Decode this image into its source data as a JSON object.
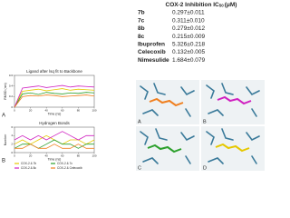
{
  "table": {
    "header": {
      "text": "COX-2 Inhibition IC",
      "sub": "50",
      "unit": "(μM)"
    },
    "rows": [
      [
        "7b",
        "0.297±0.011"
      ],
      [
        "7c",
        "0.311±0.010"
      ],
      [
        "8b",
        "0.279±0.012"
      ],
      [
        "8c",
        "0.215±0.009"
      ],
      [
        "Ibuprofen",
        "5.326±0.218"
      ],
      [
        "Celecoxib",
        "0.132±0.005"
      ],
      [
        "Nimesulide",
        "1.684±0.079"
      ]
    ]
  },
  "chart_data": [
    {
      "type": "line",
      "title": "Ligand after lsq fit to Backbone",
      "panel_label": "A",
      "x_label": "Time (ns)",
      "y_label": "RMSD (nm)",
      "x": [
        0,
        10,
        20,
        30,
        40,
        50,
        60,
        70,
        80,
        90,
        100
      ],
      "xlim": [
        0,
        100
      ],
      "xticks": [
        0,
        20,
        40,
        60,
        80,
        100
      ],
      "ylim": [
        0,
        0.6
      ],
      "yticks": [
        0,
        0.2,
        0.4,
        0.6
      ],
      "legend": false,
      "series": [
        {
          "name": "COX-2 & 7b",
          "color": "#e6c800",
          "values": [
            0,
            0.3,
            0.32,
            0.34,
            0.31,
            0.33,
            0.35,
            0.32,
            0.34,
            0.33,
            0.32
          ]
        },
        {
          "name": "COX-2 & 7c",
          "color": "#2ca02c",
          "values": [
            0,
            0.25,
            0.27,
            0.24,
            0.28,
            0.26,
            0.25,
            0.27,
            0.26,
            0.28,
            0.27
          ]
        },
        {
          "name": "COX-2 & 8c",
          "color": "#d020c0",
          "values": [
            0,
            0.36,
            0.38,
            0.4,
            0.37,
            0.39,
            0.41,
            0.38,
            0.4,
            0.39,
            0.38
          ]
        },
        {
          "name": "COX-2 & Celecoxib",
          "color": "#f08020",
          "values": [
            0,
            0.2,
            0.22,
            0.21,
            0.23,
            0.22,
            0.2,
            0.21,
            0.22,
            0.23,
            0.21
          ]
        }
      ]
    },
    {
      "type": "line",
      "title": "Hydrogen Bonds",
      "panel_label": "B",
      "x_label": "Time (ns)",
      "y_label": "Number",
      "x": [
        0,
        10,
        20,
        30,
        40,
        50,
        60,
        70,
        80,
        90,
        100
      ],
      "xlim": [
        0,
        100
      ],
      "xticks": [
        0,
        20,
        40,
        60,
        80,
        100
      ],
      "ylim": [
        0,
        6
      ],
      "yticks": [
        0,
        2,
        4,
        6
      ],
      "legend": true,
      "series": [
        {
          "name": "COX-2 & 7b",
          "color": "#e6c800",
          "values": [
            2,
            3,
            2,
            3,
            4,
            3,
            2,
            3,
            3,
            2,
            3
          ]
        },
        {
          "name": "COX-2 & 7c",
          "color": "#2ca02c",
          "values": [
            1,
            2,
            2,
            1,
            2,
            3,
            2,
            2,
            1,
            2,
            2
          ]
        },
        {
          "name": "COX-2 & 8c",
          "color": "#d020c0",
          "values": [
            3,
            4,
            3,
            4,
            3,
            4,
            5,
            4,
            3,
            4,
            4
          ]
        },
        {
          "name": "COX-2 & Celecoxib",
          "color": "#f08020",
          "values": [
            1,
            1,
            2,
            1,
            1,
            2,
            1,
            1,
            2,
            1,
            1
          ]
        }
      ]
    }
  ],
  "panels": {
    "labels": [
      "A",
      "B",
      "C",
      "D"
    ]
  }
}
